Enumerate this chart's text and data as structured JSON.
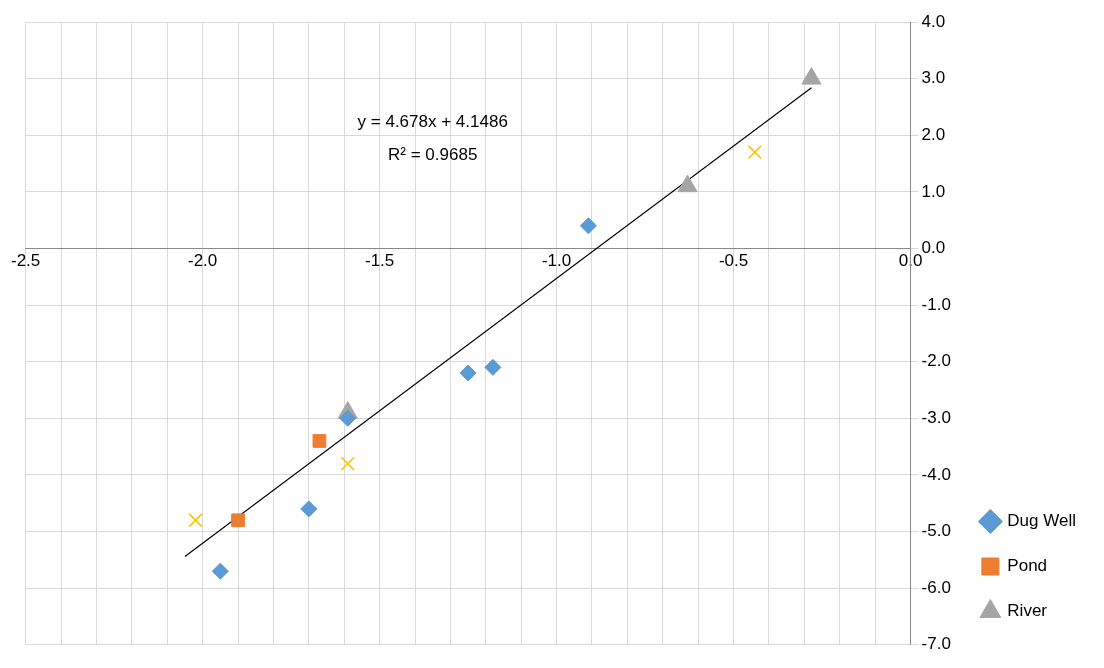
{
  "chart_data": {
    "type": "scatter",
    "series": [
      {
        "name": "Dug Well",
        "color": "#5b9bd5",
        "marker": "diamond",
        "x": [
          -1.95,
          -1.7,
          -1.59,
          -1.25,
          -1.18,
          -0.91
        ],
        "values": [
          -5.7,
          -4.6,
          -3.0,
          -2.2,
          -2.1,
          0.4
        ]
      },
      {
        "name": "Pond",
        "color": "#ed7d31",
        "marker": "square",
        "x": [
          -1.9,
          -1.67
        ],
        "values": [
          -4.8,
          -3.4
        ]
      },
      {
        "name": "River",
        "color": "#a5a5a5",
        "marker": "triangle",
        "x": [
          -1.59,
          -0.63,
          -0.28
        ],
        "values": [
          -2.9,
          1.1,
          3.0
        ]
      },
      {
        "color": "#ffc000",
        "marker": "cross",
        "x": [
          -2.02,
          -1.59,
          -0.44
        ],
        "values": [
          -4.8,
          -3.8,
          1.7
        ]
      },
      {
        "type": "line",
        "color": "#000000",
        "marker": "none",
        "x": [
          -2.05,
          -0.28
        ],
        "values": [
          -5.44,
          2.84
        ]
      }
    ],
    "xlim": [
      -2.5,
      0.0
    ],
    "xticks": [
      {
        "value": -2.5,
        "label": "-2.5"
      },
      {
        "value": -2.4,
        "label": null
      },
      {
        "value": -2.3,
        "label": null
      },
      {
        "value": -2.2,
        "label": null
      },
      {
        "value": -2.1,
        "label": null
      },
      {
        "value": -2.0,
        "label": "-2.0"
      },
      {
        "value": -1.9,
        "label": null
      },
      {
        "value": -1.8,
        "label": null
      },
      {
        "value": -1.7,
        "label": null
      },
      {
        "value": -1.6,
        "label": null
      },
      {
        "value": -1.5,
        "label": "-1.5"
      },
      {
        "value": -1.4,
        "label": null
      },
      {
        "value": -1.3,
        "label": null
      },
      {
        "value": -1.2,
        "label": null
      },
      {
        "value": -1.1,
        "label": null
      },
      {
        "value": -1.0,
        "label": "-1.0"
      },
      {
        "value": -0.9,
        "label": null
      },
      {
        "value": -0.8,
        "label": null
      },
      {
        "value": -0.7,
        "label": null
      },
      {
        "value": -0.6,
        "label": null
      },
      {
        "value": -0.5,
        "label": "-0.5"
      },
      {
        "value": -0.4,
        "label": null
      },
      {
        "value": -0.3,
        "label": null
      },
      {
        "value": -0.2,
        "label": null
      },
      {
        "value": -0.1,
        "label": null
      },
      {
        "value": 0.0,
        "label": "0.0"
      }
    ],
    "ylim": [
      -7.0,
      4.0
    ],
    "yticks": [
      {
        "value": -7,
        "label": "-7.0"
      },
      {
        "value": -6,
        "label": "-6.0"
      },
      {
        "value": -5,
        "label": "-5.0"
      },
      {
        "value": -4,
        "label": "-4.0"
      },
      {
        "value": -3,
        "label": "-3.0"
      },
      {
        "value": -2,
        "label": "-2.0"
      },
      {
        "value": -1,
        "label": "-1.0"
      },
      {
        "value": 0,
        "label": "0.0"
      },
      {
        "value": 1,
        "label": "1.0"
      },
      {
        "value": 2,
        "label": "2.0"
      },
      {
        "value": 3,
        "label": "3.0"
      },
      {
        "value": 4,
        "label": "4.0"
      }
    ],
    "annotations": [
      "y = 4.678x + 4.1486",
      "R² = 0.9685"
    ],
    "grid": true,
    "legend": "bottom right"
  }
}
